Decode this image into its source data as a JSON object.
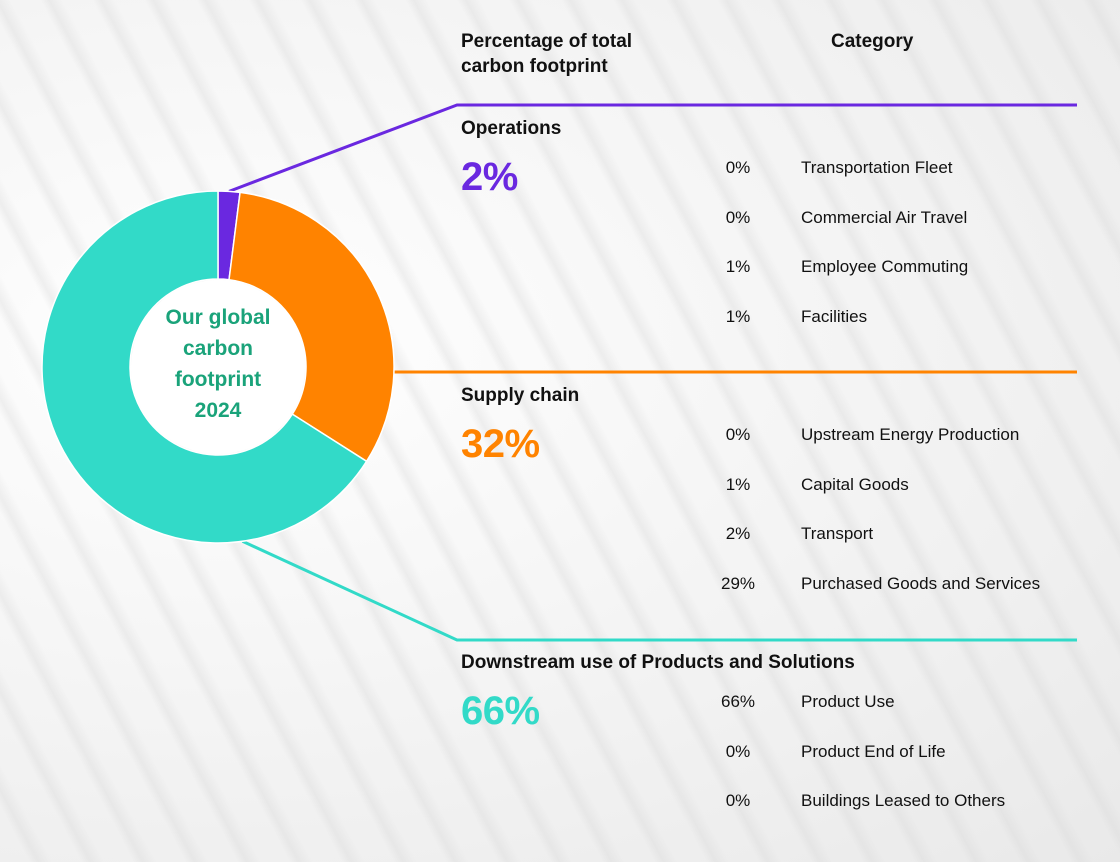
{
  "headers": {
    "percentage_line1": "Percentage of total",
    "percentage_line2": "carbon footprint",
    "category": "Category"
  },
  "center_label": [
    "Our global",
    "carbon",
    "footprint",
    "2024"
  ],
  "colors": {
    "operations": "#6a28e0",
    "supply_chain": "#ff8300",
    "downstream": "#32dac8",
    "center_text": "#1aa37a"
  },
  "chart_data": {
    "type": "pie",
    "title": "",
    "center_text": "Our global carbon footprint 2024",
    "slices": [
      {
        "name": "Operations",
        "value": 2,
        "label": "2%"
      },
      {
        "name": "Supply chain",
        "value": 32,
        "label": "32%"
      },
      {
        "name": "Downstream use of Products and Solutions",
        "value": 66,
        "label": "66%"
      }
    ],
    "breakdown": [
      {
        "section": "Operations",
        "total": "2%",
        "items": [
          {
            "percent": "0%",
            "category": "Transportation Fleet"
          },
          {
            "percent": "0%",
            "category": "Commercial Air Travel"
          },
          {
            "percent": "1%",
            "category": "Employee Commuting"
          },
          {
            "percent": "1%",
            "category": "Facilities"
          }
        ]
      },
      {
        "section": "Supply chain",
        "total": "32%",
        "items": [
          {
            "percent": "0%",
            "category": "Upstream Energy Production"
          },
          {
            "percent": "1%",
            "category": "Capital Goods"
          },
          {
            "percent": "2%",
            "category": "Transport"
          },
          {
            "percent": "29%",
            "category": "Purchased Goods and Services"
          }
        ]
      },
      {
        "section": "Downstream use of Products and Solutions",
        "total": "66%",
        "items": [
          {
            "percent": "66%",
            "category": "Product Use"
          },
          {
            "percent": "0%",
            "category": "Product End of Life"
          },
          {
            "percent": "0%",
            "category": "Buildings Leased to Others"
          }
        ]
      }
    ]
  }
}
